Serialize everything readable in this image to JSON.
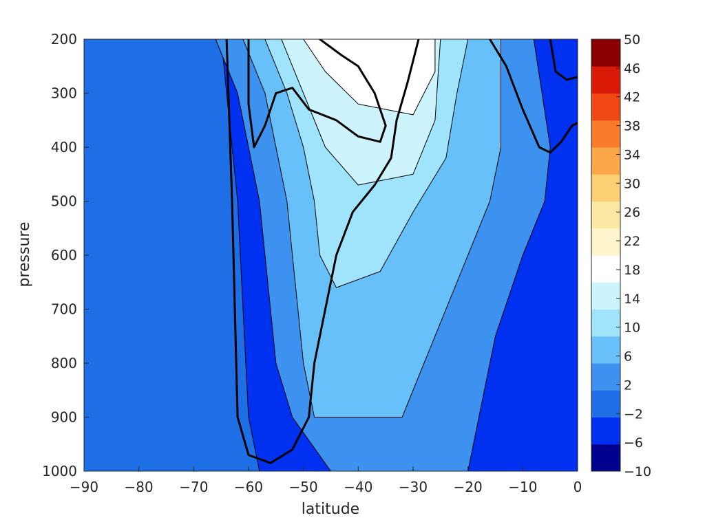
{
  "chart_data": {
    "type": "filled-contour",
    "title": "",
    "xlabel": "latitude",
    "ylabel": "pressure",
    "xlim": [
      -90,
      0
    ],
    "ylim": [
      200,
      1000
    ],
    "y_reversed": true,
    "x_ticks": [
      "−90",
      "−80",
      "−70",
      "−60",
      "−50",
      "−40",
      "−30",
      "−20",
      "−10",
      "0"
    ],
    "x_tick_values": [
      -90,
      -80,
      -70,
      -60,
      -50,
      -40,
      -30,
      -20,
      -10,
      0
    ],
    "y_ticks": [
      "200",
      "300",
      "400",
      "500",
      "600",
      "700",
      "800",
      "900",
      "1000"
    ],
    "y_tick_values": [
      200,
      300,
      400,
      500,
      600,
      700,
      800,
      900,
      1000
    ],
    "colorbar": {
      "ticks": [
        "50",
        "46",
        "42",
        "38",
        "34",
        "30",
        "26",
        "22",
        "18",
        "14",
        "10",
        "6",
        "2",
        "−2",
        "−6",
        "−10"
      ],
      "levels": [
        -10,
        -6,
        -2,
        2,
        6,
        10,
        14,
        18,
        22,
        26,
        30,
        34,
        38,
        42,
        46,
        50
      ],
      "colors": [
        "#00008f",
        "#0030f0",
        "#1e6ee6",
        "#3d92f0",
        "#68c0f8",
        "#a0e4fc",
        "#cdf4fc",
        "#ffffff",
        "#fff5cc",
        "#fde8a3",
        "#fdcf74",
        "#fca74a",
        "#f97b2c",
        "#f24816",
        "#d81a06",
        "#8a0000"
      ]
    },
    "filled_regions": [
      {
        "level_bottom": -2,
        "outline": [
          [
            -90,
            200
          ],
          [
            -65,
            200
          ],
          [
            -64,
            300
          ],
          [
            -62,
            500
          ],
          [
            -61,
            700
          ],
          [
            -60,
            900
          ],
          [
            -58,
            1000
          ],
          [
            -90,
            1000
          ]
        ]
      },
      {
        "level_bottom": 2,
        "outline": [
          [
            -66,
            200
          ],
          [
            -62,
            300
          ],
          [
            -60,
            400
          ],
          [
            -58,
            500
          ],
          [
            -57,
            600
          ],
          [
            -56,
            700
          ],
          [
            -55,
            800
          ],
          [
            -52,
            900
          ],
          [
            -45,
            1000
          ],
          [
            -20,
            1000
          ],
          [
            -18,
            900
          ],
          [
            -15,
            750
          ],
          [
            -10,
            600
          ],
          [
            -6,
            500
          ],
          [
            -5,
            400
          ],
          [
            -8,
            200
          ]
        ]
      },
      {
        "level_bottom": 6,
        "outline": [
          [
            -61,
            200
          ],
          [
            -57,
            300
          ],
          [
            -55,
            400
          ],
          [
            -53,
            500
          ],
          [
            -52,
            600
          ],
          [
            -51,
            700
          ],
          [
            -50,
            800
          ],
          [
            -48,
            900
          ],
          [
            -32,
            900
          ],
          [
            -28,
            800
          ],
          [
            -24,
            700
          ],
          [
            -20,
            600
          ],
          [
            -16,
            500
          ],
          [
            -14,
            400
          ],
          [
            -14,
            200
          ]
        ]
      },
      {
        "level_bottom": 10,
        "outline": [
          [
            -57,
            200
          ],
          [
            -53,
            300
          ],
          [
            -50,
            400
          ],
          [
            -48,
            500
          ],
          [
            -47,
            600
          ],
          [
            -44,
            660
          ],
          [
            -36,
            630
          ],
          [
            -30,
            520
          ],
          [
            -24,
            420
          ],
          [
            -22,
            300
          ],
          [
            -20,
            200
          ]
        ]
      },
      {
        "level_bottom": 14,
        "outline": [
          [
            -54,
            200
          ],
          [
            -50,
            300
          ],
          [
            -46,
            400
          ],
          [
            -40,
            470
          ],
          [
            -30,
            450
          ],
          [
            -26,
            350
          ],
          [
            -25,
            200
          ]
        ]
      },
      {
        "level_bottom": 18,
        "outline": [
          [
            -50,
            200
          ],
          [
            -46,
            260
          ],
          [
            -40,
            320
          ],
          [
            -30,
            340
          ],
          [
            -26,
            260
          ],
          [
            -26,
            200
          ]
        ]
      }
    ],
    "annotation_lines": [
      {
        "style": "thick-black",
        "points": [
          [
            -64,
            200
          ],
          [
            -63,
            500
          ],
          [
            -62,
            900
          ],
          [
            -60,
            970
          ],
          [
            -56,
            985
          ],
          [
            -52,
            960
          ],
          [
            -49,
            900
          ],
          [
            -48,
            800
          ],
          [
            -46,
            700
          ],
          [
            -44,
            600
          ],
          [
            -41,
            520
          ],
          [
            -37,
            470
          ],
          [
            -34,
            420
          ],
          [
            -33,
            350
          ],
          [
            -31,
            280
          ],
          [
            -29,
            200
          ]
        ]
      },
      {
        "style": "thick-black",
        "points": [
          [
            -60,
            200
          ],
          [
            -60,
            320
          ],
          [
            -59,
            400
          ],
          [
            -57,
            360
          ],
          [
            -55,
            300
          ],
          [
            -52,
            290
          ],
          [
            -49,
            330
          ],
          [
            -44,
            350
          ],
          [
            -40,
            380
          ],
          [
            -36,
            390
          ],
          [
            -35,
            360
          ],
          [
            -37,
            300
          ],
          [
            -40,
            250
          ],
          [
            -43,
            230
          ],
          [
            -47,
            200
          ]
        ]
      },
      {
        "style": "thick-black",
        "points": [
          [
            -16,
            200
          ],
          [
            -13,
            250
          ],
          [
            -10,
            330
          ],
          [
            -7,
            400
          ],
          [
            -5,
            410
          ],
          [
            -3,
            390
          ],
          [
            -1,
            360
          ],
          [
            0,
            355
          ]
        ]
      },
      {
        "style": "thick-black",
        "points": [
          [
            -5,
            200
          ],
          [
            -4,
            260
          ],
          [
            -2,
            275
          ],
          [
            0,
            270
          ]
        ]
      }
    ]
  }
}
